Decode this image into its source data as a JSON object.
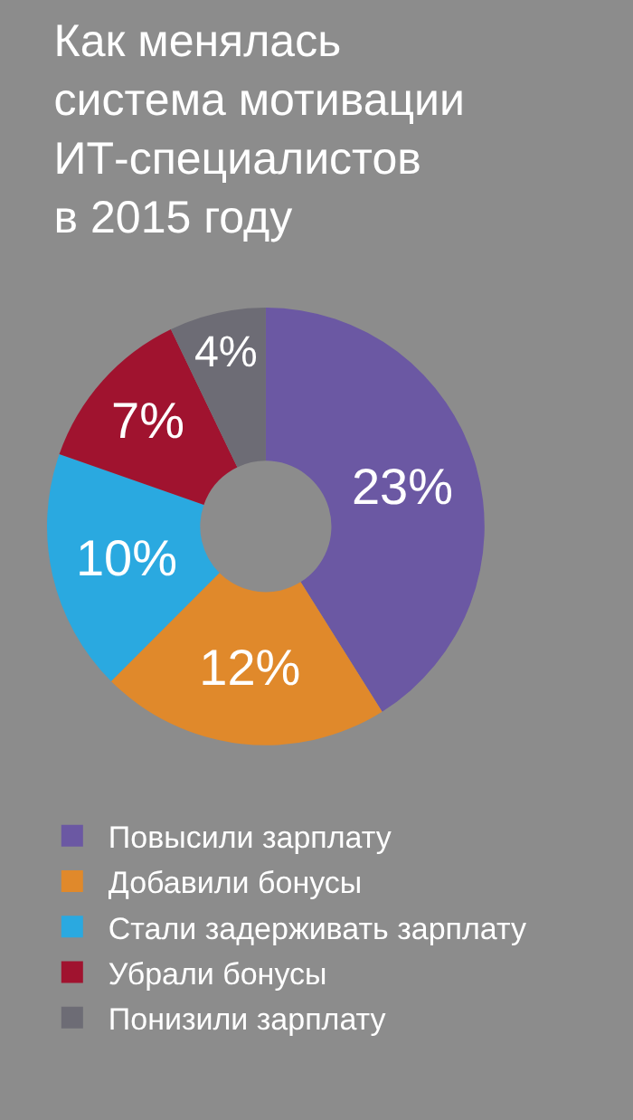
{
  "chart_data": {
    "type": "donut",
    "title": "Как менялась\nсистема мотивации\nИТ-специалистов\nв 2015 году",
    "categories": [
      "Повысили зарплату",
      "Добавили бонусы",
      "Стали задерживать зарплату",
      "Убрали бонусы",
      "Понизили зарплату"
    ],
    "values": [
      23,
      12,
      10,
      7,
      4
    ],
    "value_labels": [
      "23%",
      "12%",
      "10%",
      "7%",
      "4%"
    ],
    "colors": [
      "#6b58a3",
      "#e0892b",
      "#2aa9e0",
      "#a0132f",
      "#6d6c75"
    ],
    "legend": "bottom"
  }
}
